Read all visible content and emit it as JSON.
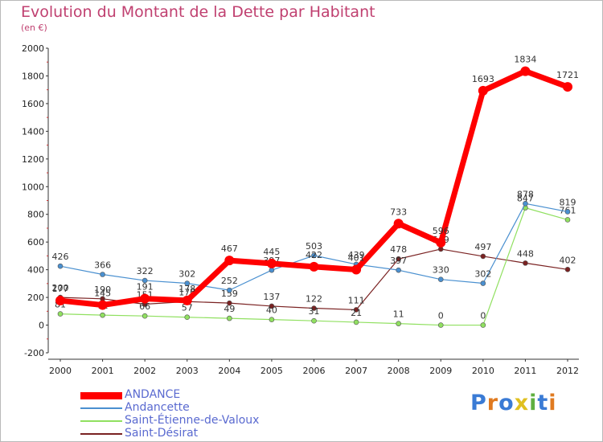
{
  "title": "Evolution du Montant de la Dette par Habitant",
  "unit": "(en €)",
  "logo": "Proxiti",
  "colors": {
    "title": "#c04070",
    "legend_text": "#5a6ad0"
  },
  "chart_data": {
    "type": "line",
    "title": "Evolution du Montant de la Dette par Habitant",
    "ylabel": "(en €)",
    "xlabel": "",
    "ylim": [
      -200,
      2000
    ],
    "ystep": 200,
    "grid": false,
    "legend": "bottom-left",
    "categories": [
      "2000",
      "2001",
      "2002",
      "2003",
      "2004",
      "2005",
      "2006",
      "2007",
      "2008",
      "2009",
      "2010",
      "2011",
      "2012"
    ],
    "series": [
      {
        "name": "ANDANCE",
        "color": "#ff0000",
        "values": [
          177,
          145,
          191,
          178,
          467,
          445,
          422,
          401,
          733,
          596,
          1693,
          1834,
          1721
        ]
      },
      {
        "name": "Andancette",
        "color": "#4a90d0",
        "values": [
          426,
          366,
          322,
          302,
          252,
          397,
          503,
          439,
          397,
          330,
          302,
          878,
          819
        ]
      },
      {
        "name": "Saint-Étienne-de-Valoux",
        "color": "#90e060",
        "values": [
          81,
          72,
          66,
          57,
          49,
          40,
          31,
          21,
          11,
          0,
          0,
          847,
          761
        ]
      },
      {
        "name": "Saint-Désirat",
        "color": "#7a2222",
        "values": [
          200,
          190,
          151,
          170,
          159,
          137,
          122,
          111,
          478,
          549,
          497,
          448,
          402
        ]
      }
    ]
  }
}
